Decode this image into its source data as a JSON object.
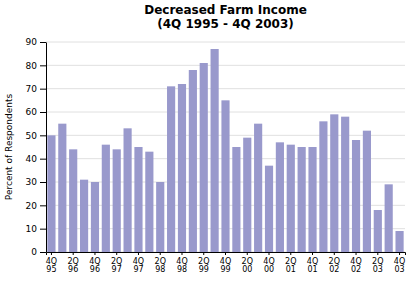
{
  "chart_data": {
    "type": "bar",
    "title": "Decreased Farm Income\n(4Q 1995 - 4Q 2003)",
    "ylabel": "Percent of Respondents",
    "categories": [
      "4Q\n95",
      null,
      "2Q\n96",
      null,
      "4Q\n96",
      null,
      "2Q\n97",
      null,
      "4Q\n97",
      null,
      "2Q\n98",
      null,
      "4Q\n98",
      null,
      "2Q\n99",
      null,
      "4Q\n99",
      null,
      "2Q\n00",
      null,
      "4Q\n00",
      null,
      "2Q\n01",
      null,
      "4Q\n01",
      null,
      "2Q\n02",
      null,
      "4Q\n02",
      null,
      "2Q\n03",
      null,
      "4Q\n03"
    ],
    "values": [
      50,
      55,
      44,
      31,
      30,
      46,
      44,
      53,
      45,
      43,
      30,
      71,
      72,
      78,
      81,
      87,
      65,
      45,
      49,
      55,
      37,
      47,
      46,
      45,
      45,
      56,
      59,
      58,
      48,
      52,
      18,
      29,
      9
    ],
    "color": "#9999cc",
    "ylim": [
      0,
      90
    ],
    "yticks": [
      0,
      10,
      20,
      30,
      40,
      50,
      60,
      70,
      80,
      90
    ],
    "grid": true
  }
}
